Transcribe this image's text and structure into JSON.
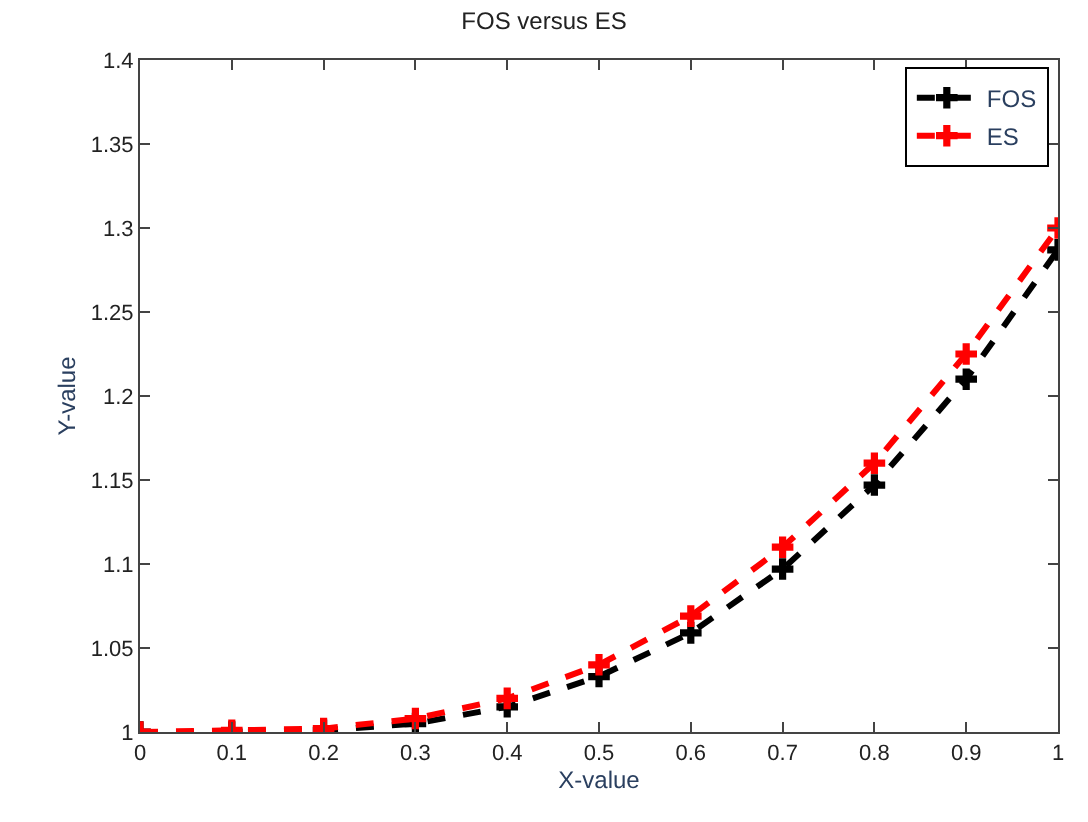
{
  "chart_data": {
    "type": "line",
    "title": "FOS versus ES",
    "xlabel": "X-value",
    "ylabel": "Y-value",
    "x": [
      0,
      0.1,
      0.2,
      0.3,
      0.4,
      0.5,
      0.6,
      0.7,
      0.8,
      0.9,
      1
    ],
    "series": [
      {
        "name": "FOS",
        "color": "#000000",
        "values": [
          1,
          1,
          1.001,
          1.005,
          1.015,
          1.033,
          1.059,
          1.097,
          1.147,
          1.21,
          1.287
        ]
      },
      {
        "name": "ES",
        "color": "#ff0000",
        "values": [
          1,
          1.001,
          1.002,
          1.008,
          1.02,
          1.04,
          1.069,
          1.11,
          1.16,
          1.225,
          1.3
        ]
      }
    ],
    "xlim": [
      0,
      1
    ],
    "xticks": [
      0,
      0.1,
      0.2,
      0.3,
      0.4,
      0.5,
      0.6,
      0.7,
      0.8,
      0.9,
      1
    ],
    "ylim": [
      1,
      1.4
    ],
    "yticks": [
      1,
      1.05,
      1.1,
      1.15,
      1.2,
      1.25,
      1.3,
      1.35,
      1.4
    ],
    "legend": "top right",
    "marker": "cross",
    "line_style": "dashed"
  }
}
